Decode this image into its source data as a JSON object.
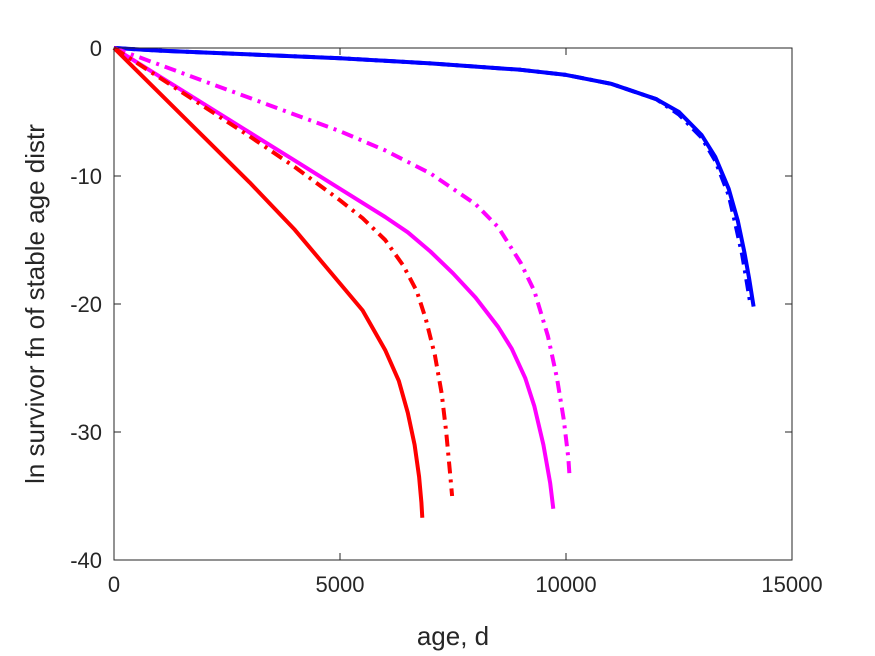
{
  "chart_data": {
    "type": "line",
    "title": "",
    "xlabel": "age, d",
    "ylabel": "ln survivor fn of stable age distr",
    "xlim": [
      0,
      15000
    ],
    "ylim": [
      -40,
      0
    ],
    "xticks": [
      0,
      5000,
      10000,
      15000
    ],
    "yticks": [
      -40,
      -30,
      -20,
      -10,
      0
    ],
    "xtick_labels": [
      "0",
      "5000",
      "10000",
      "15000"
    ],
    "ytick_labels": [
      "-40",
      "-30",
      "-20",
      "-10",
      "0"
    ],
    "grid": false,
    "legend": "none",
    "series": [
      {
        "color": "#0000ff",
        "style": "solid",
        "x": [
          0,
          1000,
          3000,
          5000,
          7000,
          9000,
          10000,
          11000,
          12000,
          12500,
          13000,
          13300,
          13600,
          13800,
          13950,
          14050,
          14150
        ],
        "y": [
          0,
          -0.2,
          -0.5,
          -0.8,
          -1.2,
          -1.7,
          -2.1,
          -2.8,
          -4.0,
          -5.0,
          -6.8,
          -8.5,
          -11.0,
          -13.5,
          -16.0,
          -18.0,
          -20.2
        ]
      },
      {
        "color": "#0000ff",
        "style": "dashdot",
        "x": [
          0,
          1000,
          3000,
          5000,
          7000,
          9000,
          10000,
          11000,
          12000,
          12500,
          13000,
          13300,
          13600,
          13750,
          13900,
          14000,
          14080
        ],
        "y": [
          0,
          -0.2,
          -0.5,
          -0.8,
          -1.2,
          -1.7,
          -2.1,
          -2.8,
          -4.0,
          -5.2,
          -7.0,
          -8.8,
          -11.5,
          -13.8,
          -16.2,
          -18.3,
          -20.0
        ]
      },
      {
        "color": "#ff00ff",
        "style": "dashdot",
        "x": [
          0,
          1000,
          2000,
          3000,
          4000,
          5000,
          6000,
          7000,
          8000,
          8500,
          9000,
          9300,
          9600,
          9800,
          9950,
          10050,
          10080
        ],
        "y": [
          0,
          -1.3,
          -2.6,
          -3.9,
          -5.2,
          -6.5,
          -8.0,
          -9.8,
          -12.2,
          -14.0,
          -16.8,
          -19.0,
          -22.5,
          -25.8,
          -29.0,
          -32.0,
          -33.5
        ]
      },
      {
        "color": "#ff00ff",
        "style": "solid",
        "x": [
          0,
          1000,
          2000,
          3000,
          4000,
          5000,
          6000,
          6500,
          7000,
          7500,
          8000,
          8500,
          8800,
          9100,
          9300,
          9500,
          9650,
          9720
        ],
        "y": [
          0,
          -2.2,
          -4.4,
          -6.6,
          -8.8,
          -11.0,
          -13.2,
          -14.4,
          -15.9,
          -17.6,
          -19.5,
          -21.8,
          -23.5,
          -25.8,
          -28.0,
          -31.0,
          -34.0,
          -36.0
        ]
      },
      {
        "color": "#ff0000",
        "style": "dashdot",
        "x": [
          0,
          1000,
          2000,
          3000,
          4000,
          5000,
          5500,
          6000,
          6400,
          6700,
          6900,
          7100,
          7250,
          7350,
          7430,
          7480
        ],
        "y": [
          0,
          -2.3,
          -4.6,
          -6.9,
          -9.3,
          -11.9,
          -13.3,
          -15.0,
          -17.0,
          -19.0,
          -21.2,
          -24.0,
          -27.0,
          -30.0,
          -33.0,
          -35.0
        ]
      },
      {
        "color": "#ff0000",
        "style": "solid",
        "x": [
          0,
          1000,
          2000,
          3000,
          4000,
          5000,
          5500,
          6000,
          6300,
          6500,
          6650,
          6750,
          6800,
          6820
        ],
        "y": [
          0,
          -3.5,
          -7.0,
          -10.5,
          -14.2,
          -18.4,
          -20.5,
          -23.6,
          -26.0,
          -28.5,
          -31.0,
          -33.5,
          -35.5,
          -36.7
        ]
      }
    ]
  }
}
